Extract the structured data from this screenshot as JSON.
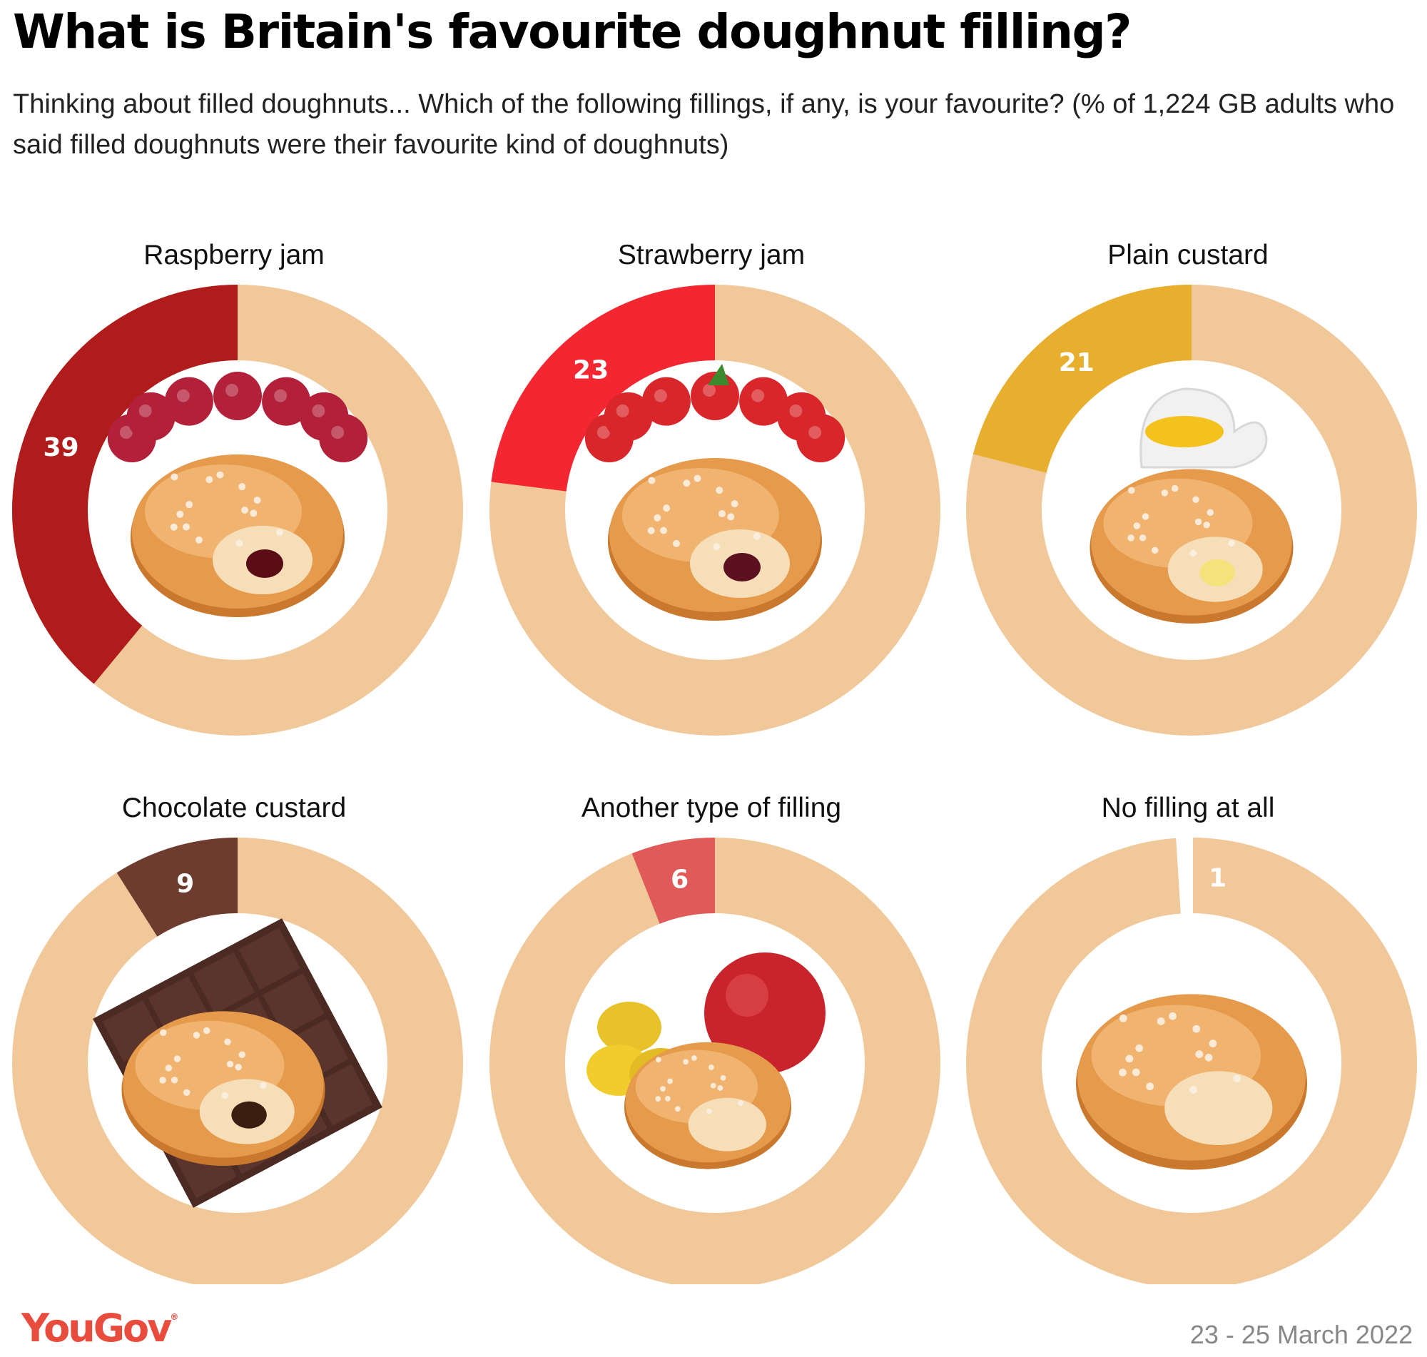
{
  "title": "What is Britain's favourite doughnut filling?",
  "subtitle": "Thinking about filled doughnuts... Which of the following fillings, if any, is your favourite? (% of 1,224 GB adults who said filled doughnuts were their favourite kind of doughnuts)",
  "chart_data": {
    "type": "pie",
    "unit": "%",
    "track_color": "#f0c899",
    "series": [
      {
        "name": "Raspberry jam",
        "value": 39,
        "color": "#b01b1b",
        "icon": "raspberry-doughnut-icon"
      },
      {
        "name": "Strawberry jam",
        "value": 23,
        "color": "#f42632",
        "icon": "strawberry-doughnut-icon"
      },
      {
        "name": "Plain custard",
        "value": 21,
        "color": "#e8ae2e",
        "icon": "custard-doughnut-icon"
      },
      {
        "name": "Chocolate custard",
        "value": 9,
        "color": "#6d3c2f",
        "icon": "chocolate-doughnut-icon"
      },
      {
        "name": "Another type of filling",
        "value": 6,
        "color": "#e05a5a",
        "icon": "fruit-doughnut-icon"
      },
      {
        "name": "No filling at all",
        "value": 1,
        "color": "#ffffff",
        "icon": "plain-doughnut-icon"
      }
    ]
  },
  "footer": {
    "brand": "YouGov",
    "date": "23 - 25 March 2022"
  }
}
